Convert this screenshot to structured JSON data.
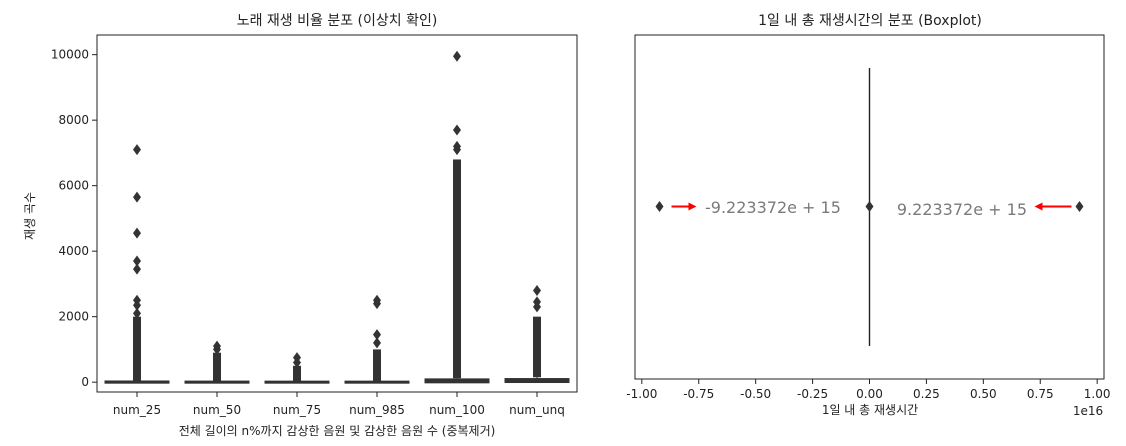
{
  "chart_data": [
    {
      "type": "boxplot",
      "title": "노래 재생 비율 분포 (이상치 확인)",
      "xlabel": "전체 길이의 n%까지 감상한 음원 및 감상한 음원 수 (중복제거)",
      "ylabel": "재생 곡수",
      "ylim": [
        -300,
        10600
      ],
      "yticks": [
        0,
        2000,
        4000,
        6000,
        8000,
        10000
      ],
      "categories": [
        "num_25",
        "num_50",
        "num_75",
        "num_985",
        "num_100",
        "num_unq"
      ],
      "box_color": "#333333",
      "series": [
        {
          "category": "num_25",
          "box": [
            0,
            0,
            2,
            6,
            20
          ],
          "outlier_max": 2000,
          "outliers": [
            2100,
            2350,
            2500,
            3450,
            3700,
            4550,
            5650,
            7100
          ]
        },
        {
          "category": "num_50",
          "box": [
            0,
            0,
            0,
            2,
            8
          ],
          "outlier_max": 900,
          "outliers": [
            1000,
            1100
          ]
        },
        {
          "category": "num_75",
          "box": [
            0,
            0,
            0,
            1,
            5
          ],
          "outlier_max": 500,
          "outliers": [
            600,
            750
          ]
        },
        {
          "category": "num_985",
          "box": [
            0,
            0,
            0,
            1,
            5
          ],
          "outlier_max": 1000,
          "outliers": [
            1200,
            1450,
            2400,
            2500
          ]
        },
        {
          "category": "num_100",
          "box": [
            0,
            10,
            30,
            70,
            120
          ],
          "outlier_max": 6800,
          "outliers": [
            7100,
            7200,
            7700,
            9950
          ]
        },
        {
          "category": "num_unq",
          "box": [
            0,
            20,
            40,
            80,
            150
          ],
          "outlier_max": 2000,
          "outliers": [
            2300,
            2450,
            2800
          ]
        }
      ]
    },
    {
      "type": "boxplot",
      "orientation": "horizontal",
      "title": "1일 내 총 재생시간의 분포 (Boxplot)",
      "xlabel": "1일 내 총 재생시간",
      "x_offset_label": "1e16",
      "xlim": [
        -1.03,
        1.03
      ],
      "xticks": [
        -1.0,
        -0.75,
        -0.5,
        -0.25,
        0.0,
        0.25,
        0.5,
        0.75,
        1.0
      ],
      "xtick_labels": [
        "-1.00",
        "-0.75",
        "-0.50",
        "-0.25",
        "0.00",
        "0.25",
        "0.50",
        "0.75",
        "1.00"
      ],
      "box": [
        0,
        0,
        0,
        0,
        0
      ],
      "outliers": [
        -0.9223372,
        0.9223372
      ],
      "arrow_color": "#ff0000",
      "annotations": [
        "-9.223372e + 15",
        "9.223372e + 15"
      ]
    }
  ]
}
